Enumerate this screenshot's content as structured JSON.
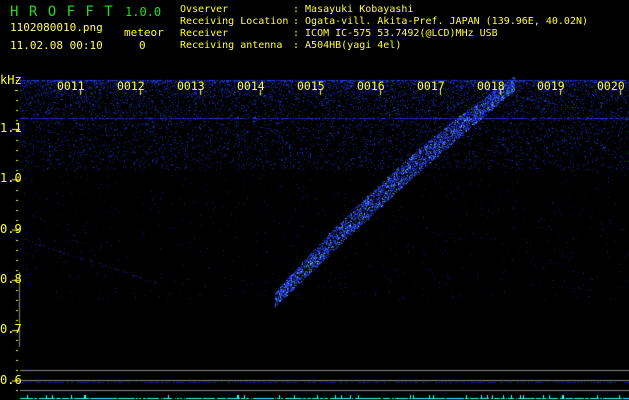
{
  "app": {
    "title_letters": "H R O F F T",
    "version": "1.0.0"
  },
  "file": {
    "name": "1102080010.png",
    "datetime": "11.02.08 00:10"
  },
  "counter": {
    "label": "meteor",
    "value": "0"
  },
  "info": [
    {
      "label": "Ovserver",
      "value": ": Masayuki Kobayashi"
    },
    {
      "label": "Receiving Location",
      "value": ": Ogata-vill. Akita-Pref. JAPAN (139.96E, 40.02N)"
    },
    {
      "label": "Receiver",
      "value": ": ICOM IC-575 53.7492(@LCD)MHz USB"
    },
    {
      "label": "Receiving antenna",
      "value": ": A504HB(yagi 4el)"
    }
  ],
  "spectrogram": {
    "unit": "kHz",
    "freq_labels": [
      "1.1",
      "1.0",
      "0.9",
      "0.8",
      "0.7",
      "0.6"
    ],
    "time_labels": [
      "0011",
      "0012",
      "0013",
      "0014",
      "0015",
      "0016",
      "0017",
      "0018",
      "0019",
      "0020"
    ],
    "colors": {
      "background": "#000000",
      "signal": "#2244ff",
      "axis": "#ffff33",
      "baseline": "#33ffff"
    }
  }
}
